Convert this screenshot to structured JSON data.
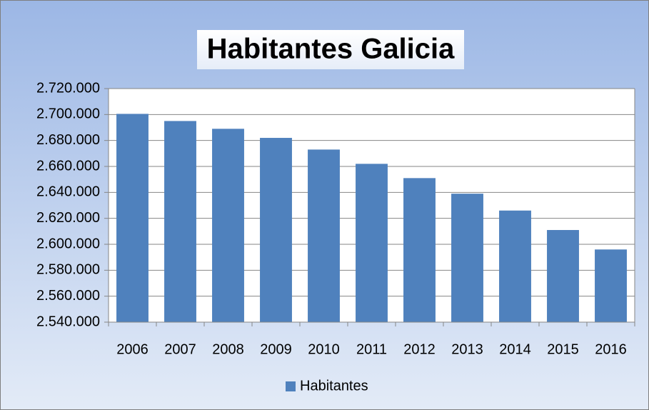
{
  "chart_data": {
    "type": "bar",
    "title": "Habitantes Galicia",
    "categories": [
      "2006",
      "2007",
      "2008",
      "2009",
      "2010",
      "2011",
      "2012",
      "2013",
      "2014",
      "2015",
      "2016"
    ],
    "series": [
      {
        "name": "Habitantes",
        "color": "#4f81bd",
        "values": [
          2700500,
          2695000,
          2689000,
          2682000,
          2673000,
          2662000,
          2651000,
          2639000,
          2626000,
          2611000,
          2596000
        ]
      }
    ],
    "ylim": [
      2540000,
      2720000
    ],
    "yticks": [
      {
        "value": 2540000,
        "label": "2.540.000"
      },
      {
        "value": 2560000,
        "label": "2.560.000"
      },
      {
        "value": 2580000,
        "label": "2.580.000"
      },
      {
        "value": 2600000,
        "label": "2.600.000"
      },
      {
        "value": 2620000,
        "label": "2.620.000"
      },
      {
        "value": 2640000,
        "label": "2.640.000"
      },
      {
        "value": 2660000,
        "label": "2.660.000"
      },
      {
        "value": 2680000,
        "label": "2.680.000"
      },
      {
        "value": 2700000,
        "label": "2.700.000"
      },
      {
        "value": 2720000,
        "label": "2.720.000"
      }
    ],
    "grid": true,
    "legend": "bottom"
  }
}
